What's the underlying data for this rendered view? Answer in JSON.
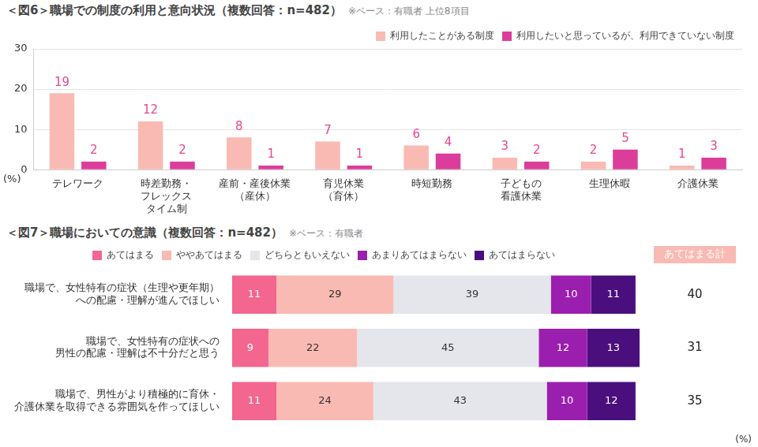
{
  "chart_data": [
    {
      "type": "bar",
      "title": "＜図6＞職場での制度の利用と意向状況（複数回答：n=482）",
      "subtitle": "※ベース：有職者 上位8項目",
      "categories": [
        "テレワーク",
        [
          "時差勤務・",
          "フレックス",
          "タイム制"
        ],
        [
          "産前・産後休業",
          "（産休）"
        ],
        [
          "育児休業",
          "（育休）"
        ],
        "時短勤務",
        [
          "子どもの",
          "看護休業"
        ],
        "生理休暇",
        "介護休業"
      ],
      "series": [
        {
          "name": "利用したことがある制度",
          "color": "#f9bab3",
          "values": [
            19,
            12,
            8,
            7,
            6,
            3,
            2,
            1
          ]
        },
        {
          "name": "利用したいと思っているが、利用できていない制度",
          "color": "#dc3d9b",
          "values": [
            2,
            2,
            1,
            1,
            4,
            2,
            5,
            3
          ]
        }
      ],
      "ylim": [
        0,
        30
      ],
      "yticks": [
        0,
        10,
        20,
        30
      ],
      "y_label": "(%)",
      "grid": true,
      "legend": "top-right",
      "data_labels": true
    },
    {
      "type": "bar",
      "title": "＜図7＞職場においての意識（複数回答：n=482）",
      "subtitle": "※ベース：有職者",
      "orientation": "horizontal",
      "stacked": true,
      "categories": [
        [
          "職場で、女性特有の症状（生理や更年期）",
          "への配慮・理解が進んでほしい"
        ],
        [
          "職場で、女性特有の症状への",
          "男性の配慮・理解は不十分だと思う"
        ],
        [
          "職場で、男性がより積極的に育休・",
          "介護休業を取得できる雰囲気を作ってほしい"
        ]
      ],
      "series": [
        {
          "name": "あてはまる",
          "color": "#f2668f",
          "values": [
            11,
            9,
            11
          ]
        },
        {
          "name": "ややあてはまる",
          "color": "#f9bab3",
          "values": [
            29,
            22,
            24
          ]
        },
        {
          "name": "どちらともいえない",
          "color": "#e4e6ec",
          "values": [
            39,
            45,
            43
          ]
        },
        {
          "name": "あまりあてはまらない",
          "color": "#9b1fae",
          "values": [
            10,
            12,
            10
          ]
        },
        {
          "name": "あてはまらない",
          "color": "#4a0f7d",
          "values": [
            11,
            13,
            12
          ]
        }
      ],
      "xlim": [
        0,
        101
      ],
      "tick_labels": "y",
      "grid": false,
      "legend": "top",
      "data_labels": true,
      "totals": {
        "label": "あてはまる計",
        "values": [
          40,
          31,
          35
        ]
      },
      "unit": "(%)"
    }
  ]
}
